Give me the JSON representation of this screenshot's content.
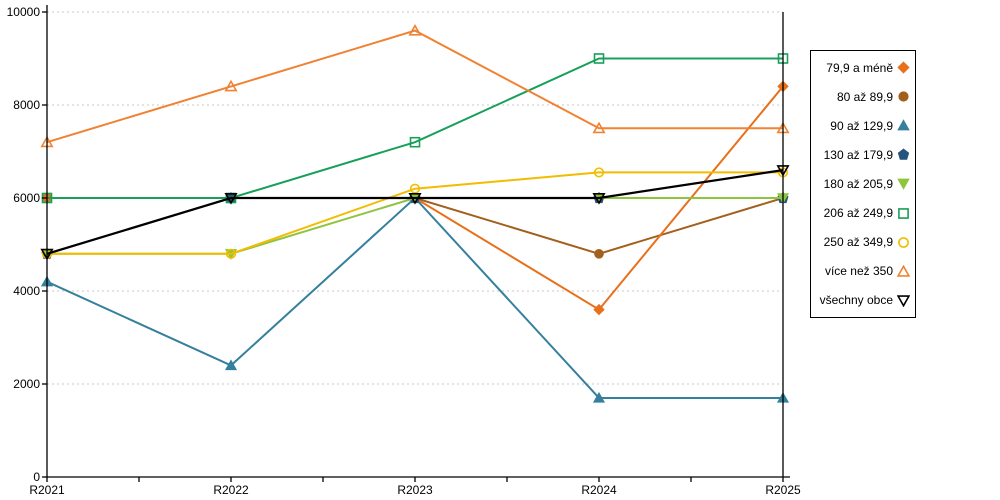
{
  "chart_data": {
    "type": "line",
    "title": "",
    "xlabel": "",
    "ylabel": "",
    "x_categories": [
      "R2021",
      "R2022",
      "R2023",
      "R2024",
      "R2025"
    ],
    "ylim": [
      0,
      10000
    ],
    "y_ticks": [
      0,
      2000,
      4000,
      6000,
      8000,
      10000
    ],
    "grid": "horizontal-dotted",
    "legend_position": "right",
    "series": [
      {
        "name": "79,9 a méně",
        "marker": "diamond",
        "fill": "solid",
        "color": "#E8701A",
        "values": [
          6000,
          6000,
          6000,
          3600,
          8400
        ]
      },
      {
        "name": "80 až 89,9",
        "marker": "circle",
        "fill": "solid",
        "color": "#A2601C",
        "values": [
          6000,
          6000,
          6000,
          4800,
          6000
        ]
      },
      {
        "name": "90 až 129,9",
        "marker": "triangle-up",
        "fill": "solid",
        "color": "#35809C",
        "values": [
          4200,
          2400,
          6000,
          1700,
          1700
        ]
      },
      {
        "name": "130 až 179,9",
        "marker": "pentagon",
        "fill": "solid",
        "color": "#27537F",
        "values": [
          4800,
          6000,
          6000,
          6000,
          6000
        ]
      },
      {
        "name": "180 až 205,9",
        "marker": "triangle-down",
        "fill": "solid",
        "color": "#8FC43F",
        "values": [
          4800,
          4800,
          6000,
          6000,
          6000
        ]
      },
      {
        "name": "206 až 249,9",
        "marker": "square",
        "fill": "hollow",
        "color": "#18A05A",
        "values": [
          6000,
          6000,
          7200,
          9000,
          9000
        ]
      },
      {
        "name": "250 až 349,9",
        "marker": "circle",
        "fill": "hollow",
        "color": "#F2BC00",
        "values": [
          4800,
          4800,
          6200,
          6550,
          6550
        ]
      },
      {
        "name": "více než 350",
        "marker": "triangle-up",
        "fill": "hollow",
        "color": "#F08232",
        "values": [
          7200,
          8400,
          9600,
          7500,
          7500
        ]
      },
      {
        "name": "všechny obce",
        "marker": "triangle-down",
        "fill": "hollow",
        "color": "#000000",
        "values": [
          4800,
          6000,
          6000,
          6000,
          6600
        ]
      }
    ]
  },
  "colors": {
    "background": "#FFFFFF",
    "grid": "#C9C9C9",
    "axis": "#000000",
    "text": "#000000"
  }
}
